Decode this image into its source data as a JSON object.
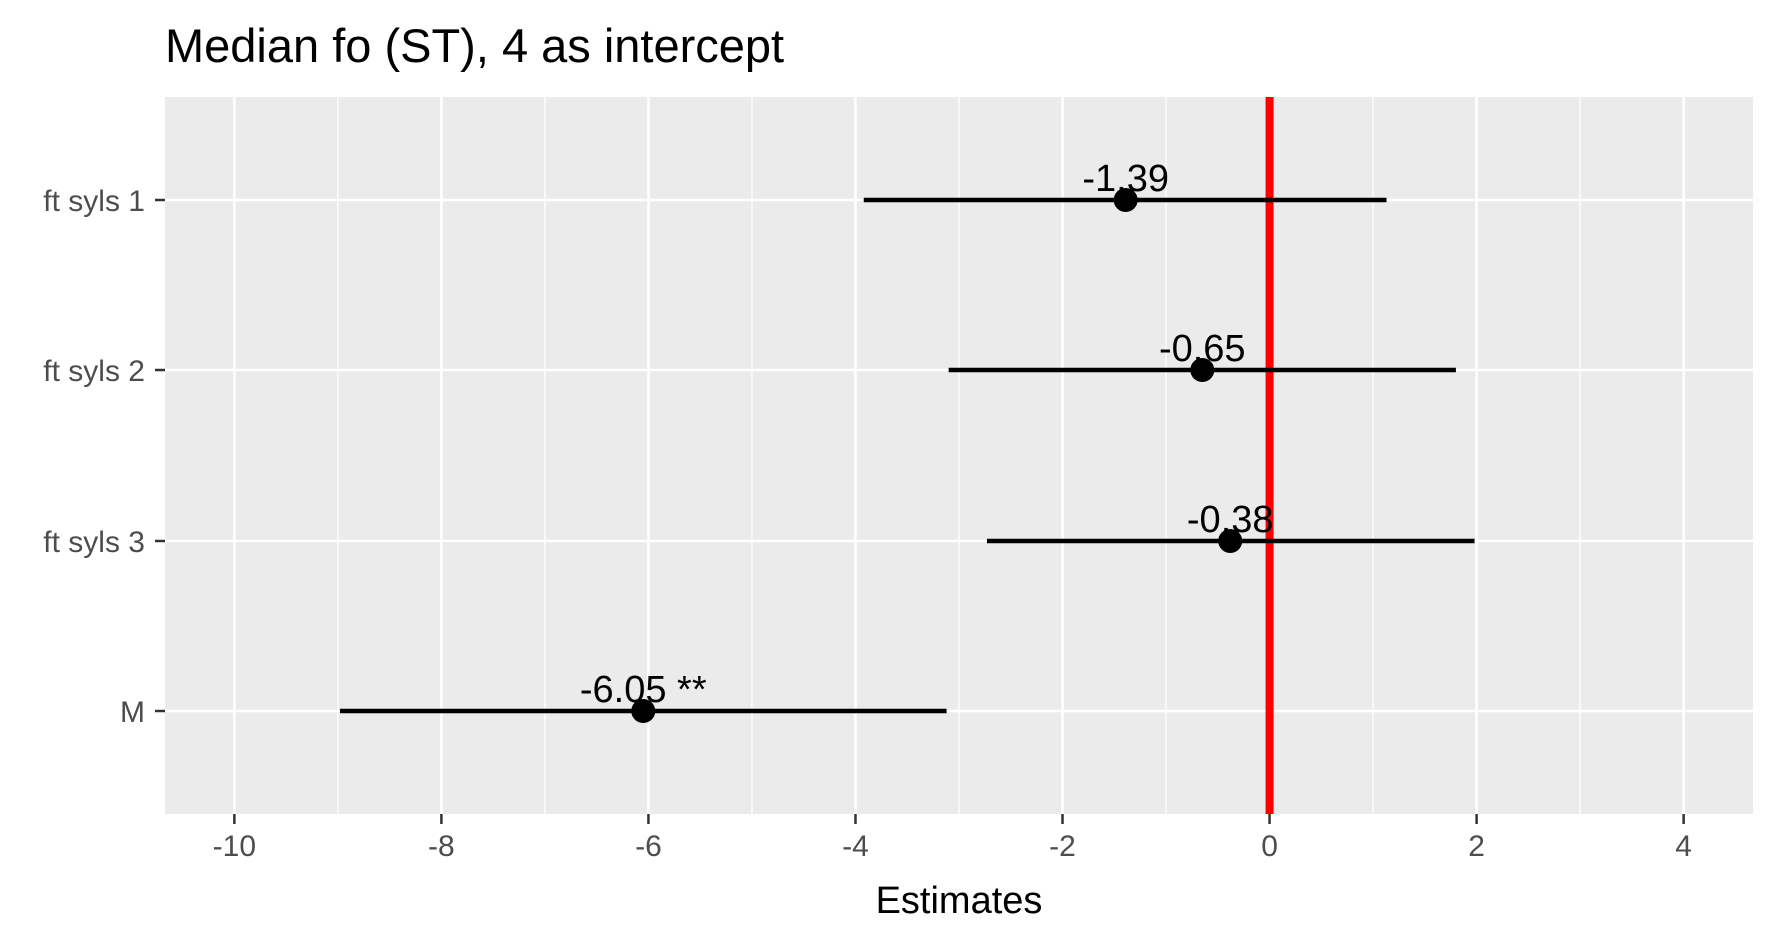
{
  "chart_data": {
    "type": "forest",
    "title": "Median fo (ST), 4 as intercept",
    "xlabel": "Estimates",
    "ylabel": "",
    "xlim": [
      -10.67,
      4.67
    ],
    "x_ticks": [
      -10,
      -8,
      -6,
      -4,
      -2,
      0,
      2,
      4
    ],
    "x_tick_labels": [
      "-10",
      "-8",
      "-6",
      "-4",
      "-2",
      "0",
      "2",
      "4"
    ],
    "grid": true,
    "reference_line": {
      "x": 0,
      "color": "#ff0000"
    },
    "colors": {
      "panel_background": "#ebebeb",
      "grid": "#ffffff",
      "point": "#000000",
      "error_bar": "#000000",
      "tick_label": "#4d4d4d"
    },
    "terms": [
      {
        "label": "ft syls 1",
        "estimate": -1.39,
        "ci_low": -3.92,
        "ci_high": 1.13,
        "value_label": "-1.39"
      },
      {
        "label": "ft syls 2",
        "estimate": -0.65,
        "ci_low": -3.1,
        "ci_high": 1.8,
        "value_label": "-0.65"
      },
      {
        "label": "ft syls 3",
        "estimate": -0.38,
        "ci_low": -2.73,
        "ci_high": 1.98,
        "value_label": "-0.38"
      },
      {
        "label": "M",
        "estimate": -6.05,
        "ci_low": -8.98,
        "ci_high": -3.12,
        "value_label": "-6.05 **"
      }
    ]
  }
}
